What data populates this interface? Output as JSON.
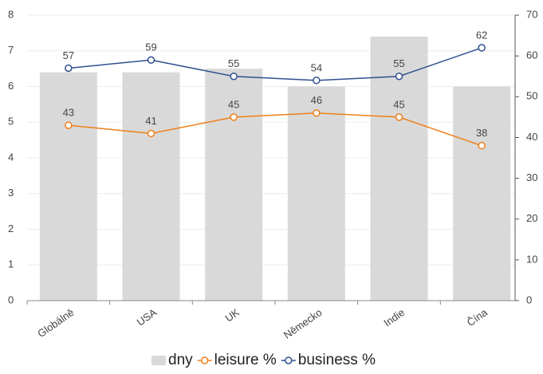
{
  "chart_data": {
    "type": "bar",
    "categories": [
      "Globálně",
      "USA",
      "UK",
      "Německo",
      "Indie",
      "Čína"
    ],
    "series": [
      {
        "name": "dny",
        "type": "bar",
        "color": "#d9d9d9",
        "values": [
          6.4,
          6.4,
          6.5,
          6.0,
          7.4,
          6.0
        ]
      },
      {
        "name": "leisure %",
        "type": "line",
        "axis": "y2",
        "color": "#f07f1a",
        "values": [
          43,
          41,
          45,
          46,
          45,
          38
        ]
      },
      {
        "name": "business %",
        "type": "line",
        "axis": "y2",
        "color": "#2f4f8f",
        "values": [
          57,
          59,
          55,
          54,
          55,
          62
        ]
      }
    ],
    "ylim": [
      0,
      8
    ],
    "yticks": [
      0,
      1,
      2,
      3,
      4,
      5,
      6,
      7,
      8
    ],
    "y2lim": [
      0,
      70
    ],
    "y2ticks": [
      0,
      10,
      20,
      30,
      40,
      50,
      60,
      70
    ],
    "grid": true,
    "legend": "bottom"
  }
}
